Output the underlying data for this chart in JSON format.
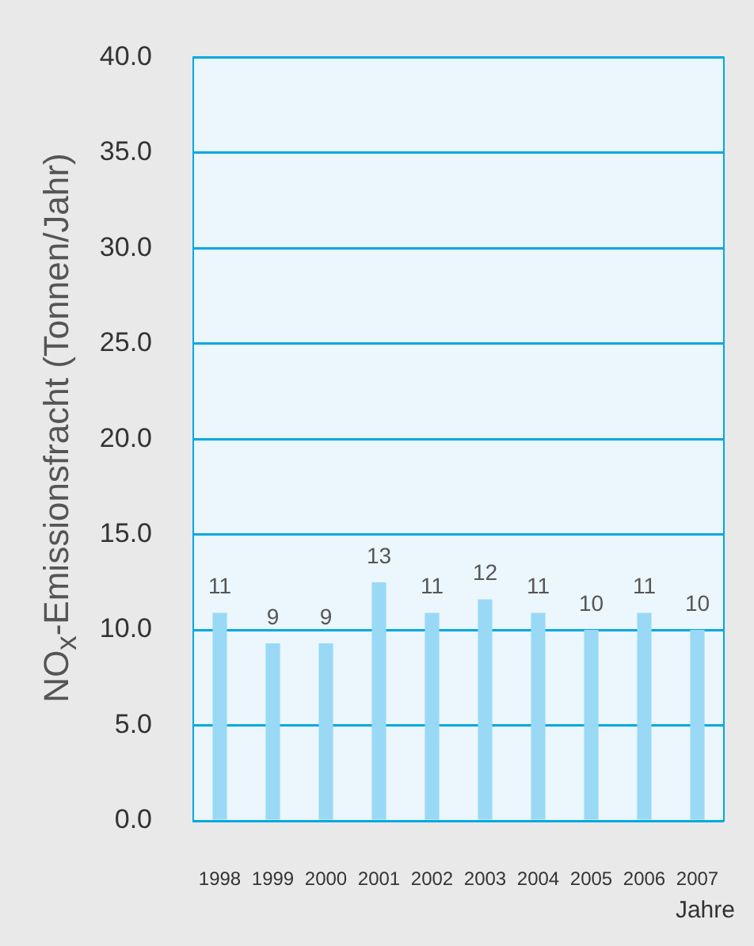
{
  "chart_data": {
    "type": "bar",
    "ylabel": "NO$_{x}$-Emissionsfracht (Tonnen/Jahr)",
    "xlabel": "Jahre",
    "categories": [
      "1998",
      "1999",
      "2000",
      "2001",
      "2002",
      "2003",
      "2004",
      "2005",
      "2006",
      "2007"
    ],
    "values": [
      10.9,
      9.3,
      9.3,
      12.5,
      10.9,
      11.6,
      10.9,
      10.0,
      10.9,
      10.0
    ],
    "value_labels": [
      "11",
      "9",
      "9",
      "13",
      "11",
      "12",
      "11",
      "10",
      "11",
      "10"
    ],
    "color": "#99d9f5",
    "ylim": [
      0,
      40
    ],
    "yticks": [
      {
        "value": 0,
        "label": "0.0"
      },
      {
        "value": 5,
        "label": "5.0"
      },
      {
        "value": 10,
        "label": "10.0"
      },
      {
        "value": 15,
        "label": "15.0"
      },
      {
        "value": 20,
        "label": "20.0"
      },
      {
        "value": 25,
        "label": "25.0"
      },
      {
        "value": 30,
        "label": "30.0"
      },
      {
        "value": 35,
        "label": "35.0"
      },
      {
        "value": 40,
        "label": "40.0"
      }
    ],
    "grid": "y",
    "legend": false
  }
}
